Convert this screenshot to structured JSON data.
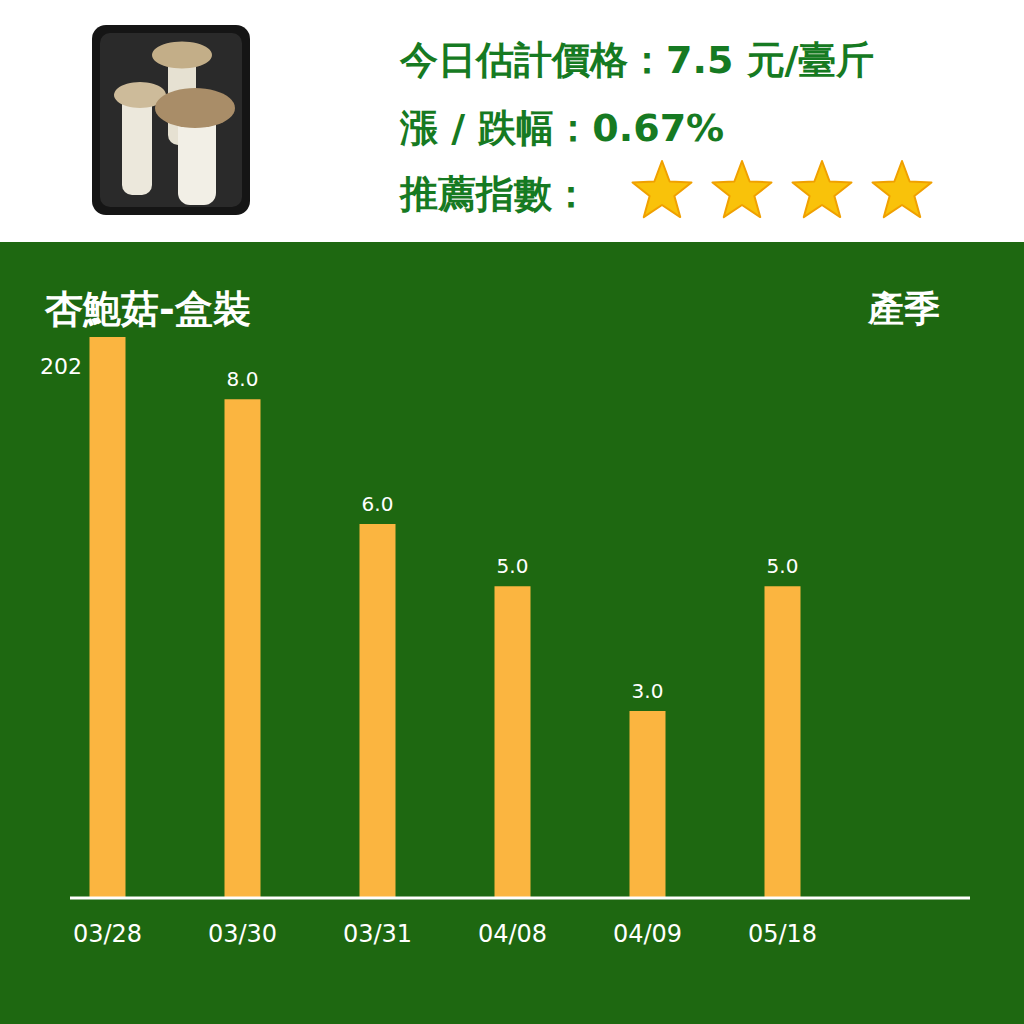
{
  "header": {
    "price_line": "今日估計價格：7.5 元/臺斤",
    "change_line": "漲 / 跌幅：0.67%",
    "rating_label": "推薦指數：",
    "stars": 4
  },
  "chart_data": {
    "type": "bar",
    "title": "杏鮑菇-盒裝",
    "subtitle": "202",
    "annotations": [
      "產季"
    ],
    "categories": [
      "03/28",
      "03/30",
      "03/31",
      "04/08",
      "04/09",
      "05/18"
    ],
    "values": [
      9.0,
      8.0,
      6.0,
      5.0,
      3.0,
      5.0
    ],
    "value_labels": [
      null,
      "8.0",
      "6.0",
      "5.0",
      "3.0",
      "5.0"
    ],
    "color": "#fbb540",
    "ylim": [
      0,
      9
    ],
    "data_labels": true,
    "tick_labels": "x",
    "grid": false
  }
}
